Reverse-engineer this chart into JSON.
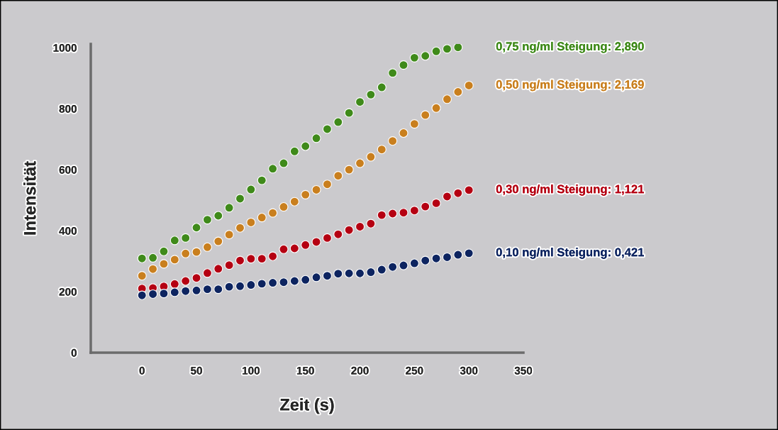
{
  "chart_data": {
    "type": "scatter",
    "xlabel": "Zeit (s)",
    "ylabel": "Intensität",
    "xlim": [
      -47,
      350
    ],
    "xticks": [
      0,
      50,
      100,
      150,
      200,
      250,
      300,
      350
    ],
    "ylim": [
      0,
      1012
    ],
    "yticks": [
      0,
      200,
      400,
      600,
      800,
      1000
    ],
    "legend": false,
    "marker": "circle",
    "x": [
      0,
      10,
      20,
      30,
      40,
      50,
      60,
      70,
      80,
      90,
      100,
      110,
      120,
      130,
      140,
      150,
      160,
      170,
      180,
      190,
      200,
      210,
      220,
      230,
      240,
      250,
      260,
      270,
      280,
      290,
      300
    ],
    "series": [
      {
        "name": "0,75 ng/ml Steigung: 2,890",
        "color": "#3f8a1a",
        "x": [
          0,
          10,
          20,
          30,
          40,
          50,
          60,
          70,
          80,
          90,
          100,
          110,
          120,
          130,
          140,
          150,
          160,
          170,
          180,
          190,
          200,
          210,
          220,
          230,
          240,
          250,
          260,
          270,
          280,
          290
        ],
        "values": [
          309,
          311,
          332,
          368,
          376,
          410,
          436,
          449,
          475,
          505,
          535,
          565,
          603,
          621,
          660,
          677,
          703,
          733,
          756,
          786,
          822,
          846,
          870,
          917,
          943,
          967,
          973,
          988,
          996,
          1001
        ]
      },
      {
        "name": "0,50 ng/ml Steigung: 2,169",
        "color": "#c97f1e",
        "values": [
          252,
          274,
          291,
          305,
          325,
          330,
          346,
          365,
          387,
          409,
          427,
          443,
          458,
          478,
          495,
          518,
          534,
          552,
          580,
          600,
          621,
          642,
          666,
          694,
          720,
          750,
          779,
          802,
          831,
          855,
          876
        ]
      },
      {
        "name": "0,30 ng/ml Steigung: 1,121",
        "color": "#b50012",
        "values": [
          210,
          212,
          217,
          225,
          235,
          245,
          261,
          275,
          287,
          302,
          308,
          308,
          316,
          339,
          342,
          353,
          363,
          376,
          388,
          402,
          413,
          423,
          451,
          456,
          459,
          466,
          479,
          490,
          512,
          523,
          533
        ]
      },
      {
        "name": "0,10 ng/ml Steigung: 0,421",
        "color": "#0d2460",
        "values": [
          188,
          192,
          194,
          198,
          202,
          204,
          208,
          208,
          216,
          218,
          222,
          226,
          229,
          231,
          235,
          239,
          247,
          252,
          259,
          260,
          260,
          264,
          272,
          281,
          286,
          293,
          302,
          309,
          313,
          321,
          326
        ]
      }
    ]
  }
}
